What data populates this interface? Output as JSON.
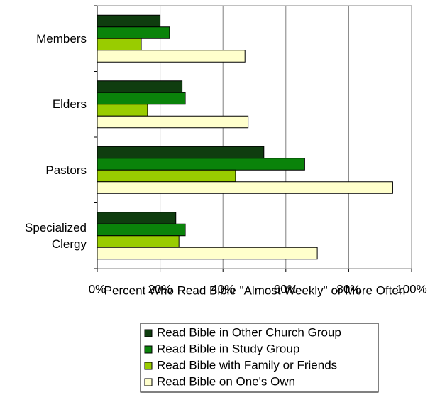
{
  "chart_data": {
    "type": "bar",
    "orientation": "horizontal",
    "categories": [
      "Members",
      "Elders",
      "Pastors",
      "Specialized Clergy"
    ],
    "series": [
      {
        "name": "Read Bible in Other Church Group",
        "color": "#0f3d0f",
        "values": [
          20,
          27,
          53,
          25
        ]
      },
      {
        "name": "Read Bible in Study Group",
        "color": "#0a830a",
        "values": [
          23,
          28,
          66,
          28
        ]
      },
      {
        "name": "Read Bible with Family or Friends",
        "color": "#99cc00",
        "values": [
          14,
          16,
          44,
          26
        ]
      },
      {
        "name": "Read Bible on One's Own",
        "color": "#ffffcc",
        "values": [
          47,
          48,
          94,
          70
        ]
      }
    ],
    "xlabel": "Percent Who Read Bible \"Almost Weekly\" or More Often",
    "xlim": [
      0,
      100
    ],
    "xticks": [
      {
        "value": 0,
        "label": "0%"
      },
      {
        "value": 20,
        "label": "20%"
      },
      {
        "value": 40,
        "label": "40%"
      },
      {
        "value": 60,
        "label": "60%"
      },
      {
        "value": 80,
        "label": "80%"
      },
      {
        "value": 100,
        "label": "100%"
      }
    ],
    "grid": true,
    "legend": "bottom"
  }
}
